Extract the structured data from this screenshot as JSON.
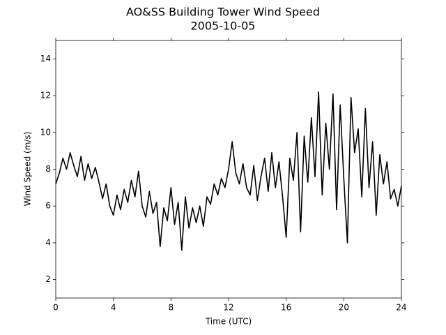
{
  "chart_data": {
    "type": "line",
    "title": "AO&SS Building Tower Wind Speed",
    "subtitle": "2005-10-05",
    "xlabel": "Time (UTC)",
    "ylabel": "Wind Speed (m/s)",
    "xlim": [
      0,
      24
    ],
    "xticks": [
      0,
      4,
      8,
      12,
      16,
      20,
      24
    ],
    "ylim": [
      1,
      15
    ],
    "yticks": [
      2,
      4,
      6,
      8,
      10,
      12,
      14
    ],
    "grid": false,
    "x": [
      0,
      0.25,
      0.5,
      0.75,
      1,
      1.25,
      1.5,
      1.75,
      2,
      2.25,
      2.5,
      2.75,
      3,
      3.25,
      3.5,
      3.75,
      4,
      4.25,
      4.5,
      4.75,
      5,
      5.25,
      5.5,
      5.75,
      6,
      6.25,
      6.5,
      6.75,
      7,
      7.25,
      7.5,
      7.75,
      8,
      8.25,
      8.5,
      8.75,
      9,
      9.25,
      9.5,
      9.75,
      10,
      10.25,
      10.5,
      10.75,
      11,
      11.25,
      11.5,
      11.75,
      12,
      12.25,
      12.5,
      12.75,
      13,
      13.25,
      13.5,
      13.75,
      14,
      14.25,
      14.5,
      14.75,
      15,
      15.25,
      15.5,
      15.75,
      16,
      16.25,
      16.5,
      16.75,
      17,
      17.25,
      17.5,
      17.75,
      18,
      18.25,
      18.5,
      18.75,
      19,
      19.25,
      19.5,
      19.75,
      20,
      20.25,
      20.5,
      20.75,
      21,
      21.25,
      21.5,
      21.75,
      22,
      22.25,
      22.5,
      22.75,
      23,
      23.25,
      23.5,
      23.75,
      24
    ],
    "series": [
      {
        "color": "#000000",
        "values": [
          7.2,
          7.8,
          8.6,
          8.0,
          8.9,
          8.2,
          7.6,
          8.7,
          7.4,
          8.3,
          7.5,
          8.1,
          7.3,
          6.4,
          7.2,
          6.0,
          5.5,
          6.6,
          5.8,
          6.9,
          6.2,
          7.4,
          6.5,
          7.9,
          6.0,
          5.4,
          6.8,
          5.6,
          6.2,
          3.8,
          5.9,
          5.2,
          7.0,
          5.0,
          6.2,
          3.6,
          6.5,
          4.8,
          5.9,
          5.1,
          6.0,
          4.9,
          6.5,
          6.1,
          7.2,
          6.6,
          7.5,
          7.0,
          8.0,
          9.5,
          7.8,
          7.2,
          8.3,
          7.0,
          6.6,
          8.2,
          6.3,
          7.6,
          8.6,
          6.8,
          8.9,
          7.0,
          8.4,
          6.5,
          4.3,
          8.6,
          7.4,
          10.0,
          4.6,
          9.8,
          7.3,
          10.8,
          7.6,
          12.2,
          6.6,
          10.5,
          8.0,
          12.1,
          5.8,
          11.5,
          7.5,
          4.0,
          11.9,
          8.9,
          10.2,
          6.5,
          11.3,
          7.0,
          9.5,
          5.5,
          8.8,
          7.2,
          8.4,
          6.4,
          6.9,
          6.0,
          7.1
        ]
      }
    ]
  }
}
